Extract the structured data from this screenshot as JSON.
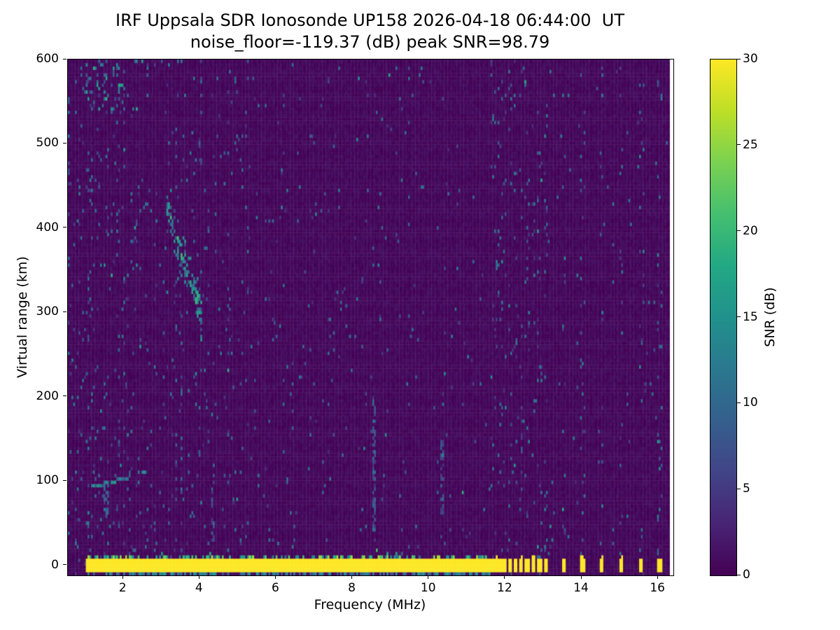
{
  "chart_data": {
    "type": "heatmap",
    "title": "IRF Uppsala SDR Ionosonde UP158 2026-04-18 06:44:00  UT",
    "subtitle": "noise_floor=-119.37 (dB) peak SNR=98.79",
    "xlabel": "Frequency (MHz)",
    "ylabel": "Virtual range (km)",
    "xlim": [
      0.55,
      16.4
    ],
    "ylim": [
      -12,
      600
    ],
    "x_ticks": [
      2,
      4,
      6,
      8,
      10,
      12,
      14,
      16
    ],
    "y_ticks": [
      0,
      100,
      200,
      300,
      400,
      500,
      600
    ],
    "data_extent": {
      "f_min": 0.55,
      "f_max": 16.3
    },
    "colorbar": {
      "label": "SNR (dB)",
      "min": 0,
      "max": 30,
      "ticks": [
        0,
        5,
        10,
        15,
        20,
        25,
        30
      ],
      "colormap": "viridis"
    },
    "colormap_stops": [
      [
        0.0,
        "#440154"
      ],
      [
        0.1,
        "#482475"
      ],
      [
        0.2,
        "#414487"
      ],
      [
        0.3,
        "#355f8d"
      ],
      [
        0.4,
        "#2a788e"
      ],
      [
        0.5,
        "#21918c"
      ],
      [
        0.6,
        "#22a884"
      ],
      [
        0.7,
        "#44bf70"
      ],
      [
        0.8,
        "#7ad151"
      ],
      [
        0.9,
        "#bddf26"
      ],
      [
        1.0,
        "#fde725"
      ]
    ],
    "features": {
      "noise": {
        "seed": 7,
        "speckle_base": 0.013,
        "bright_region_low_mhz": 6,
        "quiet_above_mhz": 11
      },
      "ground_band": {
        "f_min": 1.0,
        "f_max": 11.62,
        "r_min": -6.5,
        "r_max": 7.0,
        "snr": 30,
        "fuzz_top_km": 32,
        "fuzz_bulge_mhz": 8.7
      },
      "bottom_dashes": {
        "f_min": 1.0,
        "f_max": 11.62,
        "r_min": -10.5,
        "r_max": -8.0,
        "density": 0.5
      },
      "rfi_pulses": {
        "freqs": [
          11.68,
          11.82,
          11.97,
          12.12,
          12.27,
          12.42,
          12.58,
          12.74,
          12.9,
          13.06,
          13.52,
          14.02,
          14.52,
          15.02,
          15.55,
          16.05
        ],
        "r_min": -6.5,
        "r_max": 7.0,
        "snr": 30,
        "halfwidth_mhz": 0.055
      },
      "echo_trace": {
        "f_min": 1.15,
        "f_max": 2.62,
        "r_at_fmin": 95,
        "rise_coeff": 10,
        "rise_exp": 1.5,
        "density": 0.7
      },
      "echo_arc": {
        "f": 1.55,
        "r_min": 58,
        "r_max": 95,
        "density": 0.5
      },
      "spread_patch": {
        "f_min": 3.15,
        "f_max": 4.05,
        "r_start": 420,
        "r_end": 300,
        "sigma_km": 15,
        "density": 0.55
      },
      "top_left_patch": {
        "f_min": 1.0,
        "f_max": 2.0,
        "r_min": 540,
        "r_max": 598,
        "density": 0.12
      },
      "streaks": [
        {
          "f": 8.55,
          "r_min": 30,
          "r_max": 200,
          "density": 0.5
        },
        {
          "f": 10.35,
          "r_min": 60,
          "r_max": 150,
          "density": 0.4
        },
        {
          "f": 4.35,
          "r_min": 5,
          "r_max": 120,
          "density": 0.35
        }
      ]
    }
  }
}
